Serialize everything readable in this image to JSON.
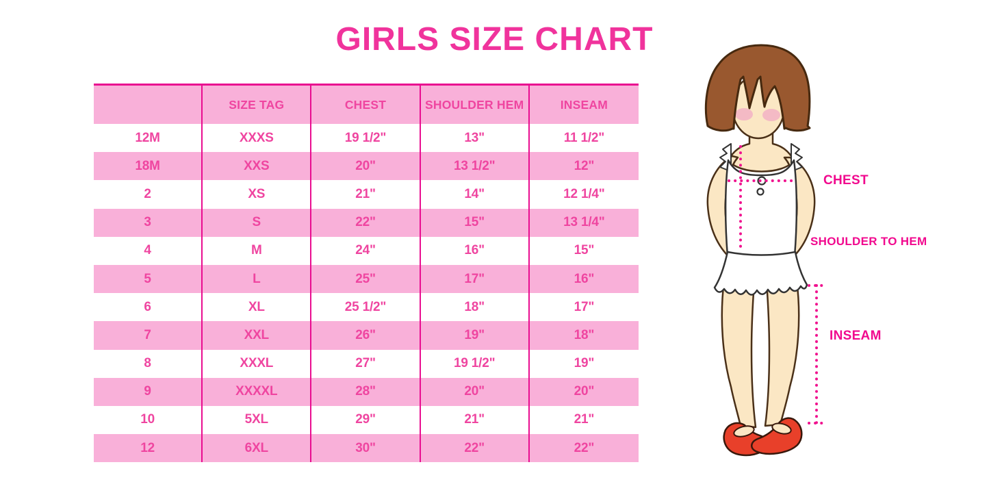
{
  "title": "GIRLS SIZE CHART",
  "colors": {
    "pink_row": "#F9B0D9",
    "divider_magenta": "#E90D90",
    "table_text": "#EF45A0",
    "title_text": "#F0339C",
    "figure_label_text": "#F1098E",
    "dotted_line": "#F0138F",
    "hair_brown": "#99582F",
    "skin": "#FBE7C4",
    "blush": "#F3AFC5",
    "shoe_red": "#E8402A"
  },
  "chart_data": {
    "type": "table",
    "title": "GIRLS SIZE CHART",
    "columns": [
      "",
      "SIZE TAG",
      "CHEST",
      "SHOULDER HEM",
      "INSEAM"
    ],
    "rows": [
      [
        "12M",
        "XXXS",
        "19 1/2\"",
        "13\"",
        "11 1/2\""
      ],
      [
        "18M",
        "XXS",
        "20\"",
        "13 1/2\"",
        "12\""
      ],
      [
        "2",
        "XS",
        "21\"",
        "14\"",
        "12 1/4\""
      ],
      [
        "3",
        "S",
        "22\"",
        "15\"",
        "13 1/4\""
      ],
      [
        "4",
        "M",
        "24\"",
        "16\"",
        "15\""
      ],
      [
        "5",
        "L",
        "25\"",
        "17\"",
        "16\""
      ],
      [
        "6",
        "XL",
        "25 1/2\"",
        "18\"",
        "17\""
      ],
      [
        "7",
        "XXL",
        "26\"",
        "19\"",
        "18\""
      ],
      [
        "8",
        "XXXL",
        "27\"",
        "19 1/2\"",
        "19\""
      ],
      [
        "9",
        "XXXXL",
        "28\"",
        "20\"",
        "20\""
      ],
      [
        "10",
        "5XL",
        "29\"",
        "21\"",
        "21\""
      ],
      [
        "12",
        "6XL",
        "30\"",
        "22\"",
        "22\""
      ]
    ],
    "layout_hints": {
      "striped": "alternating pink/white rows, header pink",
      "grid": "vertical magenta column dividers, magenta top border"
    }
  },
  "figure": {
    "chest_label": "CHEST",
    "shoulder_hem_label": "SHOULDER TO HEM",
    "inseam_label": "INSEAM"
  }
}
